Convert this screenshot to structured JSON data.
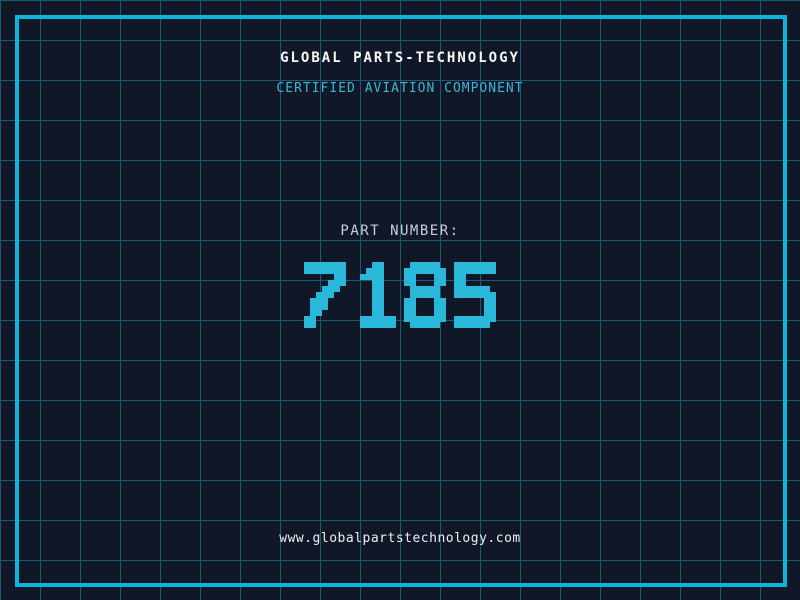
{
  "header": {
    "company": "GLOBAL PARTS-TECHNOLOGY",
    "subtitle": "CERTIFIED AVIATION COMPONENT"
  },
  "part": {
    "label": "PART NUMBER:",
    "number": "7185"
  },
  "footer": {
    "website": "www.globalpartstechnology.com"
  },
  "colors": {
    "background": "#101827",
    "grid_line": "#195a74",
    "frame": "#0cb4de",
    "digit_cyan": "#29b7da",
    "subtitle_cyan": "#38b7d8",
    "title_white": "#f8f8f8",
    "label_gray": "#c9ced6",
    "url_white": "#eef0f0"
  }
}
